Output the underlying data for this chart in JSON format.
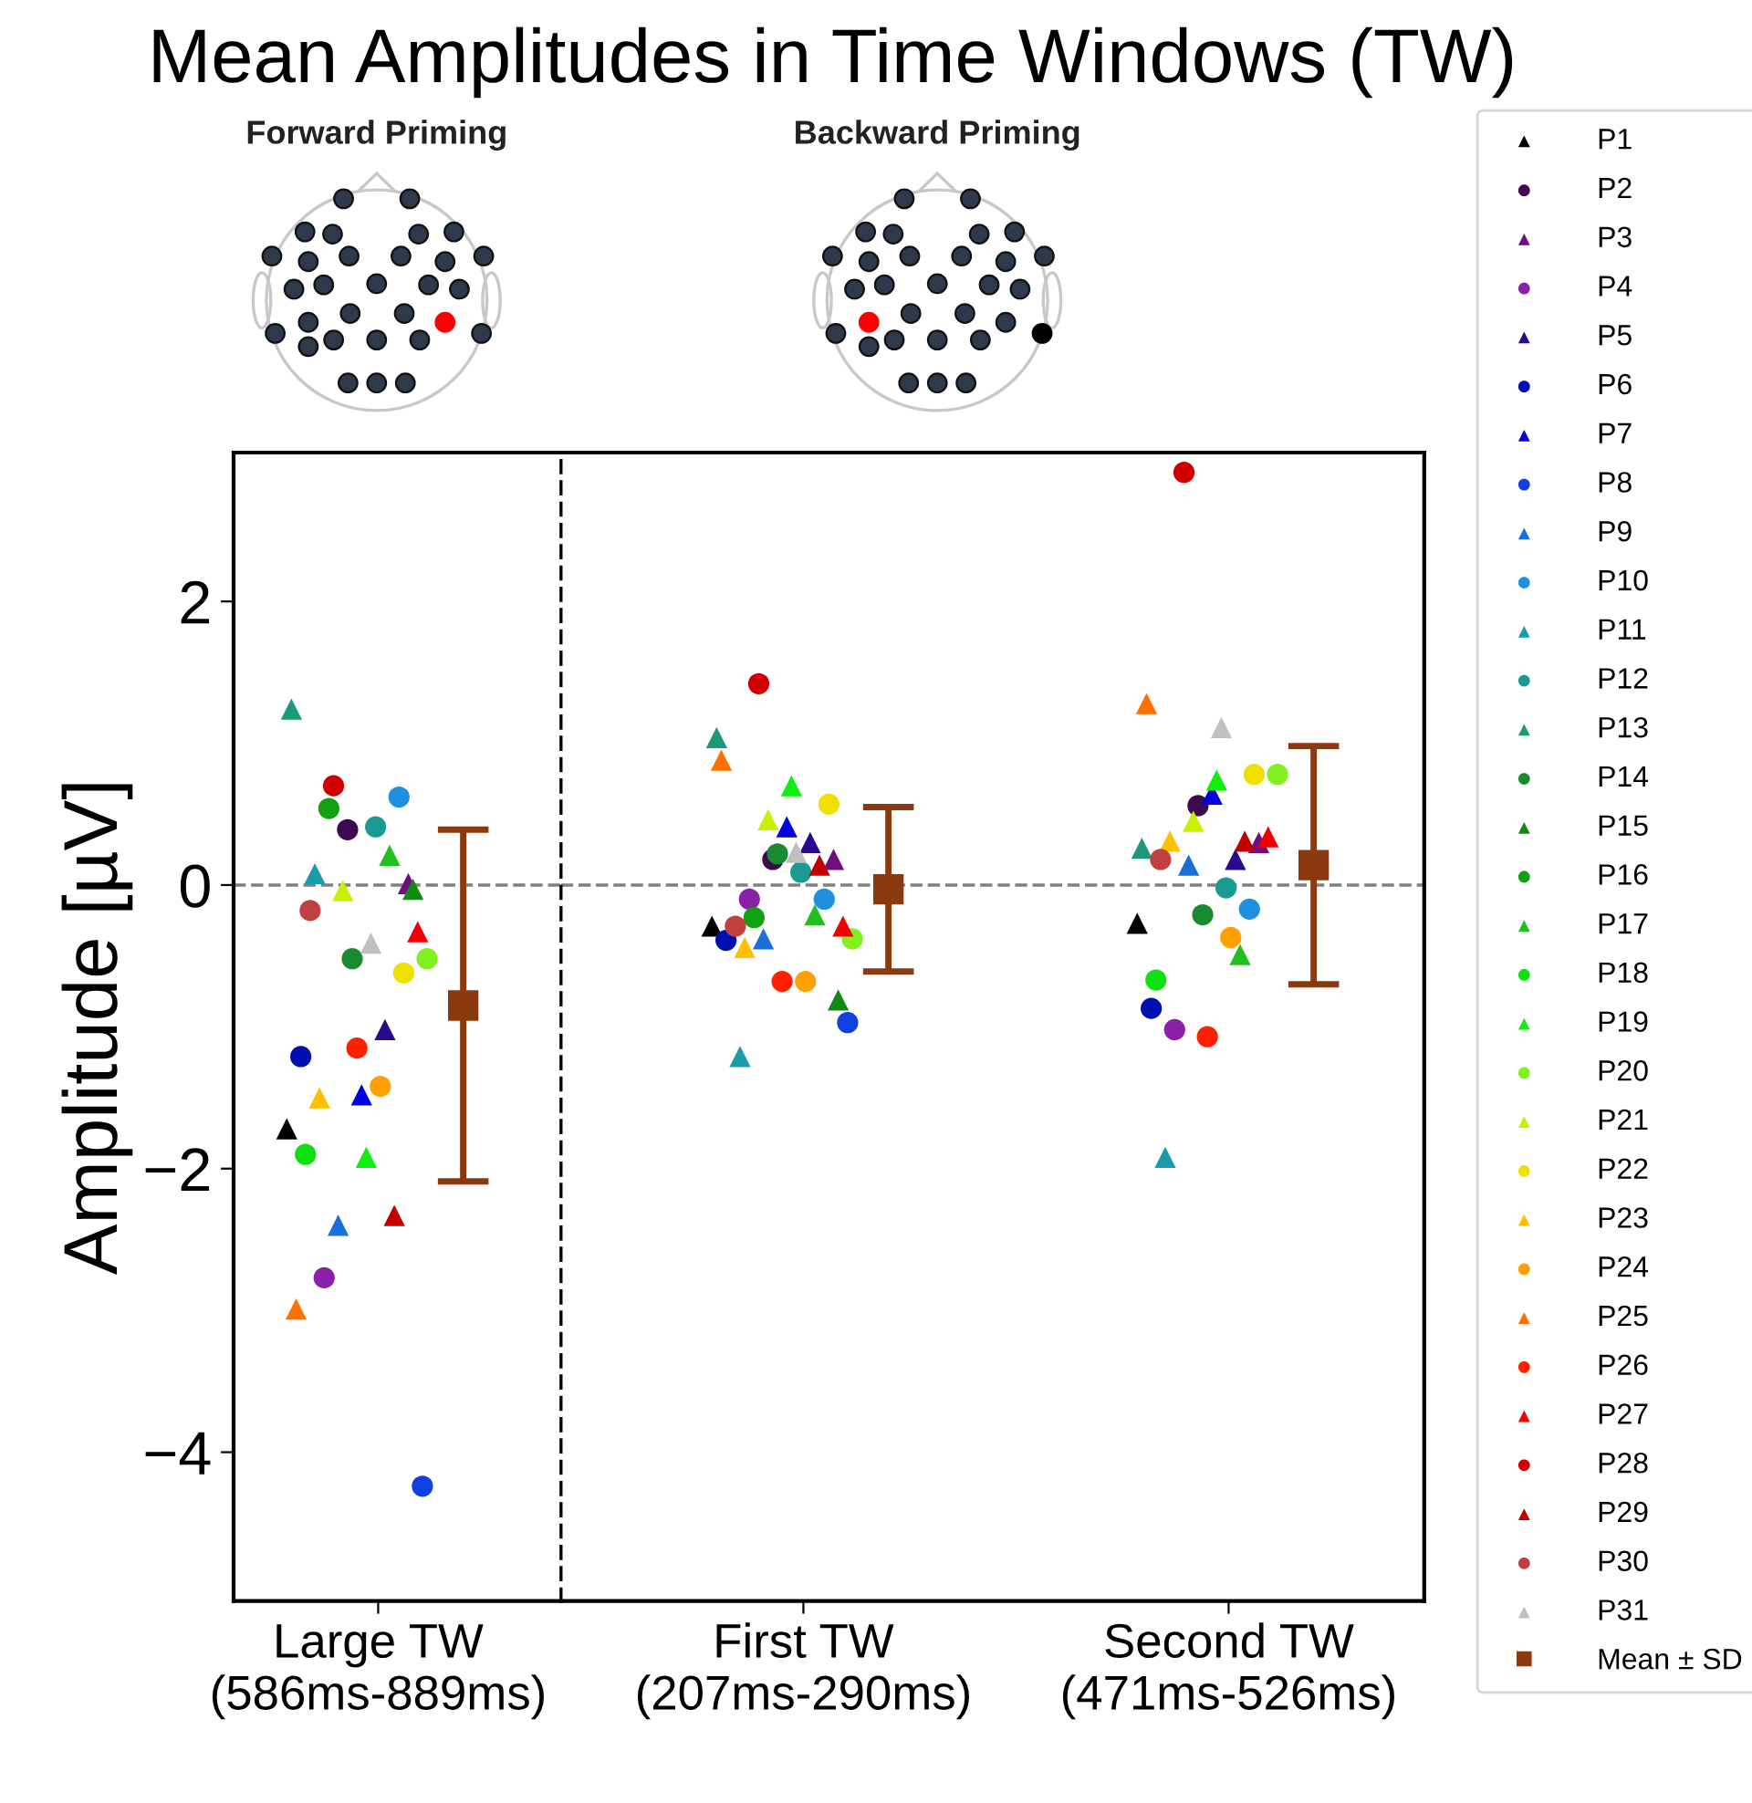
{
  "chart_data": [
    {
      "type": "scatter",
      "title": "Mean Amplitudes in Time Windows (TW)",
      "ylabel": "Amplitude [µV]",
      "annotations": [
        "Forward Priming",
        "Backward Priming"
      ],
      "categories": [
        "Large TW\n(586ms-889ms)"
      ],
      "ylim": [
        -5.05,
        3.05
      ],
      "yticks": [
        {
          "value": -4,
          "label": "−4"
        },
        {
          "value": -2,
          "label": "−2"
        },
        0,
        2
      ],
      "grid": false,
      "ref_lines": [
        {
          "axis": "y",
          "value": 0,
          "color": "#808080",
          "line_style": "dashed"
        }
      ],
      "series": [
        {
          "color": "#000000",
          "marker": "triangle",
          "values": [
            -1.72
          ]
        },
        {
          "color": "#3d0a4f",
          "marker": "circle",
          "values": [
            0.39
          ]
        },
        {
          "color": "#6e0f80",
          "marker": "triangle",
          "values": [
            0.01
          ]
        },
        {
          "color": "#8a1fa8",
          "marker": "circle",
          "values": [
            -2.77
          ]
        },
        {
          "color": "#2a0a8c",
          "marker": "triangle",
          "values": [
            -1.02
          ]
        },
        {
          "color": "#0010b0",
          "marker": "circle",
          "values": [
            -1.21
          ]
        },
        {
          "color": "#0000e0",
          "marker": "triangle",
          "values": [
            -1.48
          ]
        },
        {
          "color": "#1040e0",
          "marker": "circle",
          "values": [
            -4.24
          ]
        },
        {
          "color": "#1a6ed8",
          "marker": "triangle",
          "values": [
            -2.4
          ]
        },
        {
          "color": "#1e90e0",
          "marker": "circle",
          "values": [
            0.62
          ]
        },
        {
          "color": "#1a9aaa",
          "marker": "triangle",
          "values": [
            0.08
          ]
        },
        {
          "color": "#1a9a90",
          "marker": "circle",
          "values": [
            0.41
          ]
        },
        {
          "color": "#1a9a78",
          "marker": "triangle",
          "values": [
            1.24
          ]
        },
        {
          "color": "#1a8a30",
          "marker": "circle",
          "values": [
            -0.52
          ]
        },
        {
          "color": "#128a12",
          "marker": "triangle",
          "values": [
            -0.03
          ]
        },
        {
          "color": "#10a010",
          "marker": "circle",
          "values": [
            0.54
          ]
        },
        {
          "color": "#20c020",
          "marker": "triangle",
          "values": [
            0.21
          ]
        },
        {
          "color": "#10e010",
          "marker": "circle",
          "values": [
            -1.9
          ]
        },
        {
          "color": "#10f010",
          "marker": "triangle",
          "values": [
            -1.92
          ]
        },
        {
          "color": "#80f020",
          "marker": "circle",
          "values": [
            -0.52
          ]
        },
        {
          "color": "#c8f000",
          "marker": "triangle",
          "values": [
            -0.04
          ]
        },
        {
          "color": "#f0e000",
          "marker": "circle",
          "values": [
            -0.62
          ]
        },
        {
          "color": "#ffc000",
          "marker": "triangle",
          "values": [
            -1.5
          ]
        },
        {
          "color": "#ffa000",
          "marker": "circle",
          "values": [
            -1.42
          ]
        },
        {
          "color": "#ff7000",
          "marker": "triangle",
          "values": [
            -2.99
          ]
        },
        {
          "color": "#ff2000",
          "marker": "circle",
          "values": [
            -1.15
          ]
        },
        {
          "color": "#f00000",
          "marker": "triangle",
          "values": [
            -0.33
          ]
        },
        {
          "color": "#d00000",
          "marker": "circle",
          "values": [
            0.7
          ]
        },
        {
          "color": "#c00000",
          "marker": "triangle",
          "values": [
            -2.33
          ]
        },
        {
          "color": "#c04040",
          "marker": "circle",
          "values": [
            -0.18
          ]
        },
        {
          "color": "#c0c0c0",
          "marker": "triangle",
          "values": [
            -0.41
          ]
        },
        {
          "color": "#8b3a0f",
          "marker": "square",
          "values": [
            -0.85
          ],
          "errors": [
            1.24
          ]
        }
      ]
    },
    {
      "type": "scatter",
      "categories": [
        "First TW\n(207ms-290ms)",
        "Second TW\n(471ms-526ms)"
      ],
      "ylim": [
        -5.05,
        3.05
      ],
      "tick_labels": "x",
      "grid": false,
      "legend": "right",
      "ref_lines": [
        {
          "axis": "y",
          "value": 0,
          "color": "#808080",
          "line_style": "dashed"
        }
      ],
      "series": [
        {
          "name": "P1",
          "color": "#000000",
          "marker": "triangle",
          "values": [
            -0.29,
            -0.27
          ]
        },
        {
          "name": "P2",
          "color": "#3d0a4f",
          "marker": "circle",
          "values": [
            0.18,
            0.56
          ]
        },
        {
          "name": "P3",
          "color": "#6e0f80",
          "marker": "triangle",
          "values": [
            0.18,
            0.3
          ]
        },
        {
          "name": "P4",
          "color": "#8a1fa8",
          "marker": "circle",
          "values": [
            -0.1,
            -1.02
          ]
        },
        {
          "name": "P5",
          "color": "#2a0a8c",
          "marker": "triangle",
          "values": [
            0.3,
            0.18
          ]
        },
        {
          "name": "P6",
          "color": "#0010b0",
          "marker": "circle",
          "values": [
            -0.39,
            -0.87
          ]
        },
        {
          "name": "P7",
          "color": "#0000e0",
          "marker": "triangle",
          "values": [
            0.41,
            0.64
          ]
        },
        {
          "name": "P8",
          "color": "#1040e0",
          "marker": "circle",
          "values": [
            -0.97,
            null
          ]
        },
        {
          "name": "P9",
          "color": "#1a6ed8",
          "marker": "triangle",
          "values": [
            -0.38,
            0.14
          ]
        },
        {
          "name": "P10",
          "color": "#1e90e0",
          "marker": "circle",
          "values": [
            -0.1,
            -0.17
          ]
        },
        {
          "name": "P11",
          "color": "#1a9aaa",
          "marker": "triangle",
          "values": [
            -1.21,
            -1.92
          ]
        },
        {
          "name": "P12",
          "color": "#1a9a90",
          "marker": "circle",
          "values": [
            0.09,
            -0.02
          ]
        },
        {
          "name": "P13",
          "color": "#1a9a78",
          "marker": "triangle",
          "values": [
            1.04,
            0.26
          ]
        },
        {
          "name": "P14",
          "color": "#1a8a30",
          "marker": "circle",
          "values": [
            0.22,
            -0.21
          ]
        },
        {
          "name": "P15",
          "color": "#128a12",
          "marker": "triangle",
          "values": [
            -0.81,
            null
          ]
        },
        {
          "name": "P16",
          "color": "#10a010",
          "marker": "circle",
          "values": [
            -0.23,
            null
          ]
        },
        {
          "name": "P17",
          "color": "#20c020",
          "marker": "triangle",
          "values": [
            -0.21,
            -0.49
          ]
        },
        {
          "name": "P18",
          "color": "#10e010",
          "marker": "circle",
          "values": [
            null,
            -0.67
          ]
        },
        {
          "name": "P19",
          "color": "#10f010",
          "marker": "triangle",
          "values": [
            0.7,
            0.74
          ]
        },
        {
          "name": "P20",
          "color": "#80f020",
          "marker": "circle",
          "values": [
            -0.38,
            0.78
          ]
        },
        {
          "name": "P21",
          "color": "#c8f000",
          "marker": "triangle",
          "values": [
            0.46,
            0.45
          ]
        },
        {
          "name": "P22",
          "color": "#f0e000",
          "marker": "circle",
          "values": [
            0.57,
            0.78
          ]
        },
        {
          "name": "P23",
          "color": "#ffc000",
          "marker": "triangle",
          "values": [
            -0.44,
            0.31
          ]
        },
        {
          "name": "P24",
          "color": "#ffa000",
          "marker": "circle",
          "values": [
            -0.68,
            -0.37
          ]
        },
        {
          "name": "P25",
          "color": "#ff7000",
          "marker": "triangle",
          "values": [
            0.88,
            1.28
          ]
        },
        {
          "name": "P26",
          "color": "#ff2000",
          "marker": "circle",
          "values": [
            -0.68,
            -1.07
          ]
        },
        {
          "name": "P27",
          "color": "#f00000",
          "marker": "triangle",
          "values": [
            -0.29,
            0.34
          ]
        },
        {
          "name": "P28",
          "color": "#d00000",
          "marker": "circle",
          "values": [
            1.42,
            2.91
          ]
        },
        {
          "name": "P29",
          "color": "#c00000",
          "marker": "triangle",
          "values": [
            0.14,
            0.31
          ]
        },
        {
          "name": "P30",
          "color": "#c04040",
          "marker": "circle",
          "values": [
            -0.29,
            0.18
          ]
        },
        {
          "name": "P31",
          "color": "#c0c0c0",
          "marker": "triangle",
          "values": [
            0.23,
            1.11
          ]
        },
        {
          "name": "Mean ± SD",
          "color": "#8b3a0f",
          "marker": "square",
          "values": [
            -0.03,
            0.14
          ],
          "errors": [
            0.58,
            0.84
          ]
        }
      ]
    }
  ]
}
